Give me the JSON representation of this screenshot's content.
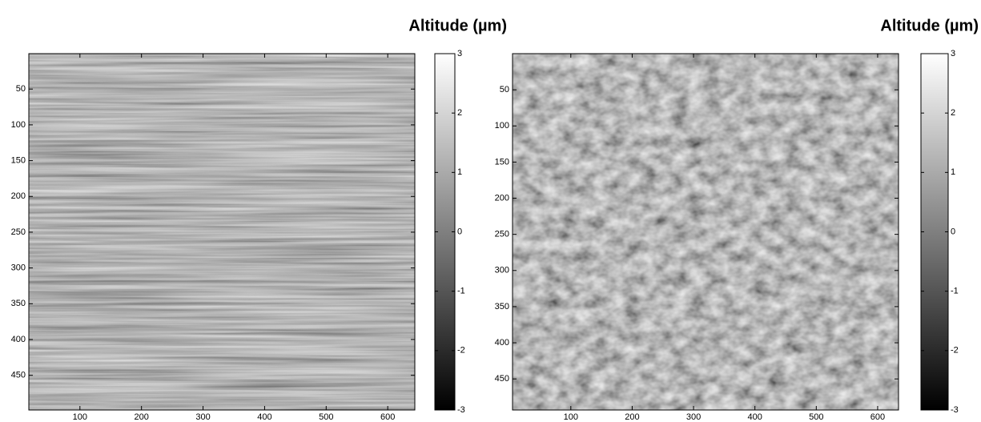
{
  "chart_data": [
    {
      "type": "heatmap",
      "colorbar_label": "Altitude (µm)",
      "xlim": [
        17,
        644
      ],
      "xticks": [
        100,
        200,
        300,
        400,
        500,
        600
      ],
      "ylim": [
        0.5,
        498.5
      ],
      "yticks": [
        50,
        100,
        150,
        200,
        250,
        300,
        350,
        400,
        450
      ],
      "y_reversed": true,
      "clim": [
        -3,
        3
      ],
      "cticks": [
        -3,
        -2,
        -1,
        0,
        1,
        2,
        3
      ]
    },
    {
      "type": "heatmap",
      "colorbar_label": "Altitude (µm)",
      "xlim": [
        5,
        634
      ],
      "xticks": [
        100,
        200,
        300,
        400,
        500,
        600
      ],
      "ylim": [
        0,
        493
      ],
      "yticks": [
        50,
        100,
        150,
        200,
        250,
        300,
        350,
        400,
        450
      ],
      "y_reversed": true,
      "clim": [
        -3,
        3
      ],
      "cticks": [
        -3,
        -2,
        -1,
        0,
        1,
        2,
        3
      ]
    }
  ]
}
